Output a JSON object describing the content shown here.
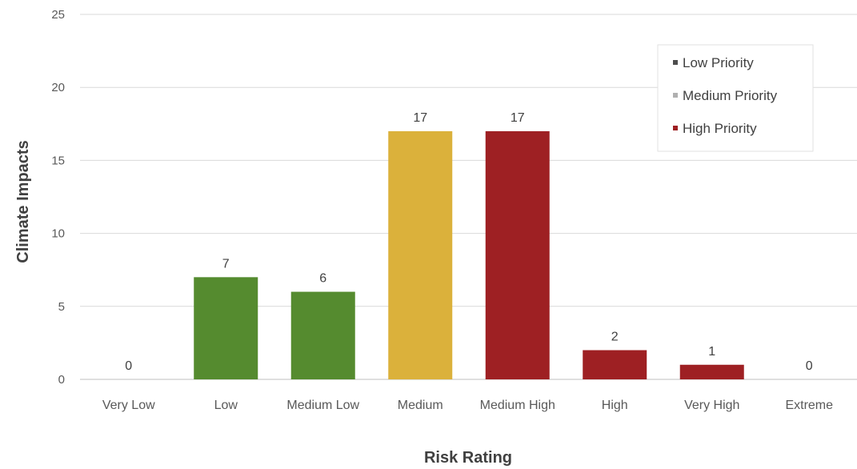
{
  "chart_data": {
    "type": "bar",
    "xlabel": "Risk Rating",
    "ylabel": "Climate Impacts",
    "ylim": [
      0,
      25
    ],
    "yticks": [
      0,
      5,
      10,
      15,
      20,
      25
    ],
    "grid": true,
    "legend_position": "top-right",
    "categories": [
      "Very Low",
      "Low",
      "Medium Low",
      "Medium",
      "Medium High",
      "High",
      "Very High",
      "Extreme"
    ],
    "values": [
      0,
      7,
      6,
      17,
      17,
      2,
      1,
      0
    ],
    "priority": [
      "Low Priority",
      "Low Priority",
      "Low Priority",
      "Medium Priority",
      "High Priority",
      "High Priority",
      "High Priority",
      "High Priority"
    ],
    "legend": [
      {
        "name": "Low Priority",
        "color": "#558B2F"
      },
      {
        "name": "Medium Priority",
        "color": "#DBB13B"
      },
      {
        "name": "High Priority",
        "color": "#9E2023"
      }
    ],
    "legend_marker_colors": [
      "#4d4d4d",
      "#b0b0b0",
      "#9E2023"
    ]
  }
}
